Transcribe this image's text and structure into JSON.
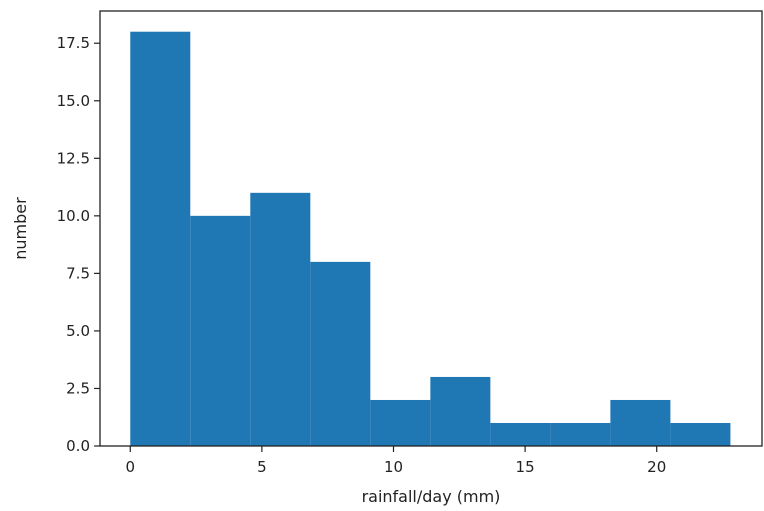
{
  "chart_data": {
    "type": "bar",
    "xlabel": "rainfall/day (mm)",
    "ylabel": "number",
    "xlim": [
      -1.15,
      24.0
    ],
    "ylim": [
      0,
      18.9
    ],
    "x_ticks": [
      0,
      5,
      10,
      15,
      20
    ],
    "x_tick_labels": [
      "0",
      "5",
      "10",
      "15",
      "20"
    ],
    "y_ticks": [
      0,
      2.5,
      5,
      7.5,
      10,
      12.5,
      15,
      17.5
    ],
    "y_tick_labels": [
      "0.0",
      "2.5",
      "5.0",
      "7.5",
      "10.0",
      "12.5",
      "15.0",
      "17.5"
    ],
    "bin_edges": [
      0,
      2.28,
      4.56,
      6.84,
      9.12,
      11.4,
      13.68,
      15.96,
      18.24,
      20.52,
      22.8
    ],
    "values": [
      18,
      10,
      11,
      8,
      2,
      3,
      1,
      1,
      2,
      1
    ],
    "bar_color": "#1f77b4",
    "grid": false
  }
}
